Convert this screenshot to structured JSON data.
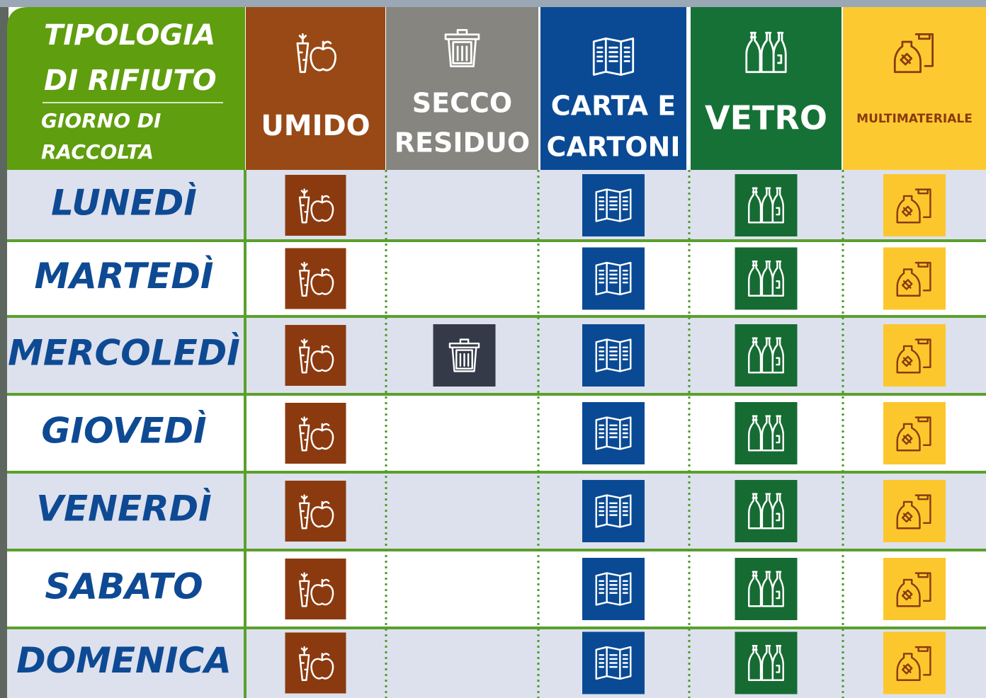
{
  "header": {
    "title_lines": [
      "TIPOLOGIA",
      "DI RIFIUTO"
    ],
    "subtitle_lines": [
      "GIORNO DI",
      "RACCOLTA"
    ]
  },
  "columns": [
    {
      "label_lines": [
        "UMIDO"
      ]
    },
    {
      "label_lines": [
        "SECCO",
        "RESIDUO"
      ]
    },
    {
      "label_lines": [
        "CARTA E",
        "CARTONI"
      ]
    },
    {
      "label_lines": [
        "VETRO"
      ]
    },
    {
      "label_lines": [
        "MULTIMATERIALE"
      ]
    }
  ],
  "days": [
    "LUNEDÌ",
    "MARTEDÌ",
    "MERCOLEDÌ",
    "GIOVEDÌ",
    "VENERDÌ",
    "SABATO",
    "DOMENICA"
  ]
}
